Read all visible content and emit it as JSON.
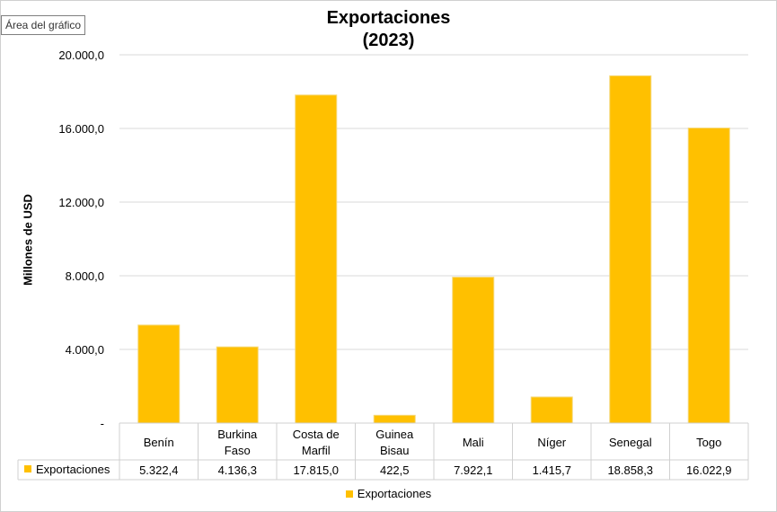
{
  "ui": {
    "area_label": "Área del gráfico"
  },
  "chart_data": {
    "type": "bar",
    "title": "Exportaciones",
    "subtitle": "(2023)",
    "ylabel": "Millones de USD",
    "xlabel": "",
    "ylim": [
      0,
      20000
    ],
    "yticks": [
      {
        "value": 0,
        "label": "-"
      },
      {
        "value": 4000,
        "label": "4.000,0"
      },
      {
        "value": 8000,
        "label": "8.000,0"
      },
      {
        "value": 12000,
        "label": "12.000,0"
      },
      {
        "value": 16000,
        "label": "16.000,0"
      },
      {
        "value": 20000,
        "label": "20.000,0"
      }
    ],
    "grid": true,
    "legend": "bottom",
    "color": "#FFC000",
    "categories": [
      [
        "Benín"
      ],
      [
        "Burkina",
        "Faso"
      ],
      [
        "Costa de",
        "Marfil"
      ],
      [
        "Guinea",
        "Bisau"
      ],
      [
        "Mali"
      ],
      [
        "Níger"
      ],
      [
        "Senegal"
      ],
      [
        "Togo"
      ]
    ],
    "series": [
      {
        "name": "Exportaciones",
        "values": [
          5322.4,
          4136.3,
          17815.0,
          422.5,
          7922.1,
          1415.7,
          18858.3,
          16022.9
        ],
        "labels": [
          "5.322,4",
          "4.136,3",
          "17.815,0",
          "422,5",
          "7.922,1",
          "1.415,7",
          "18.858,3",
          "16.022,9"
        ]
      }
    ]
  }
}
